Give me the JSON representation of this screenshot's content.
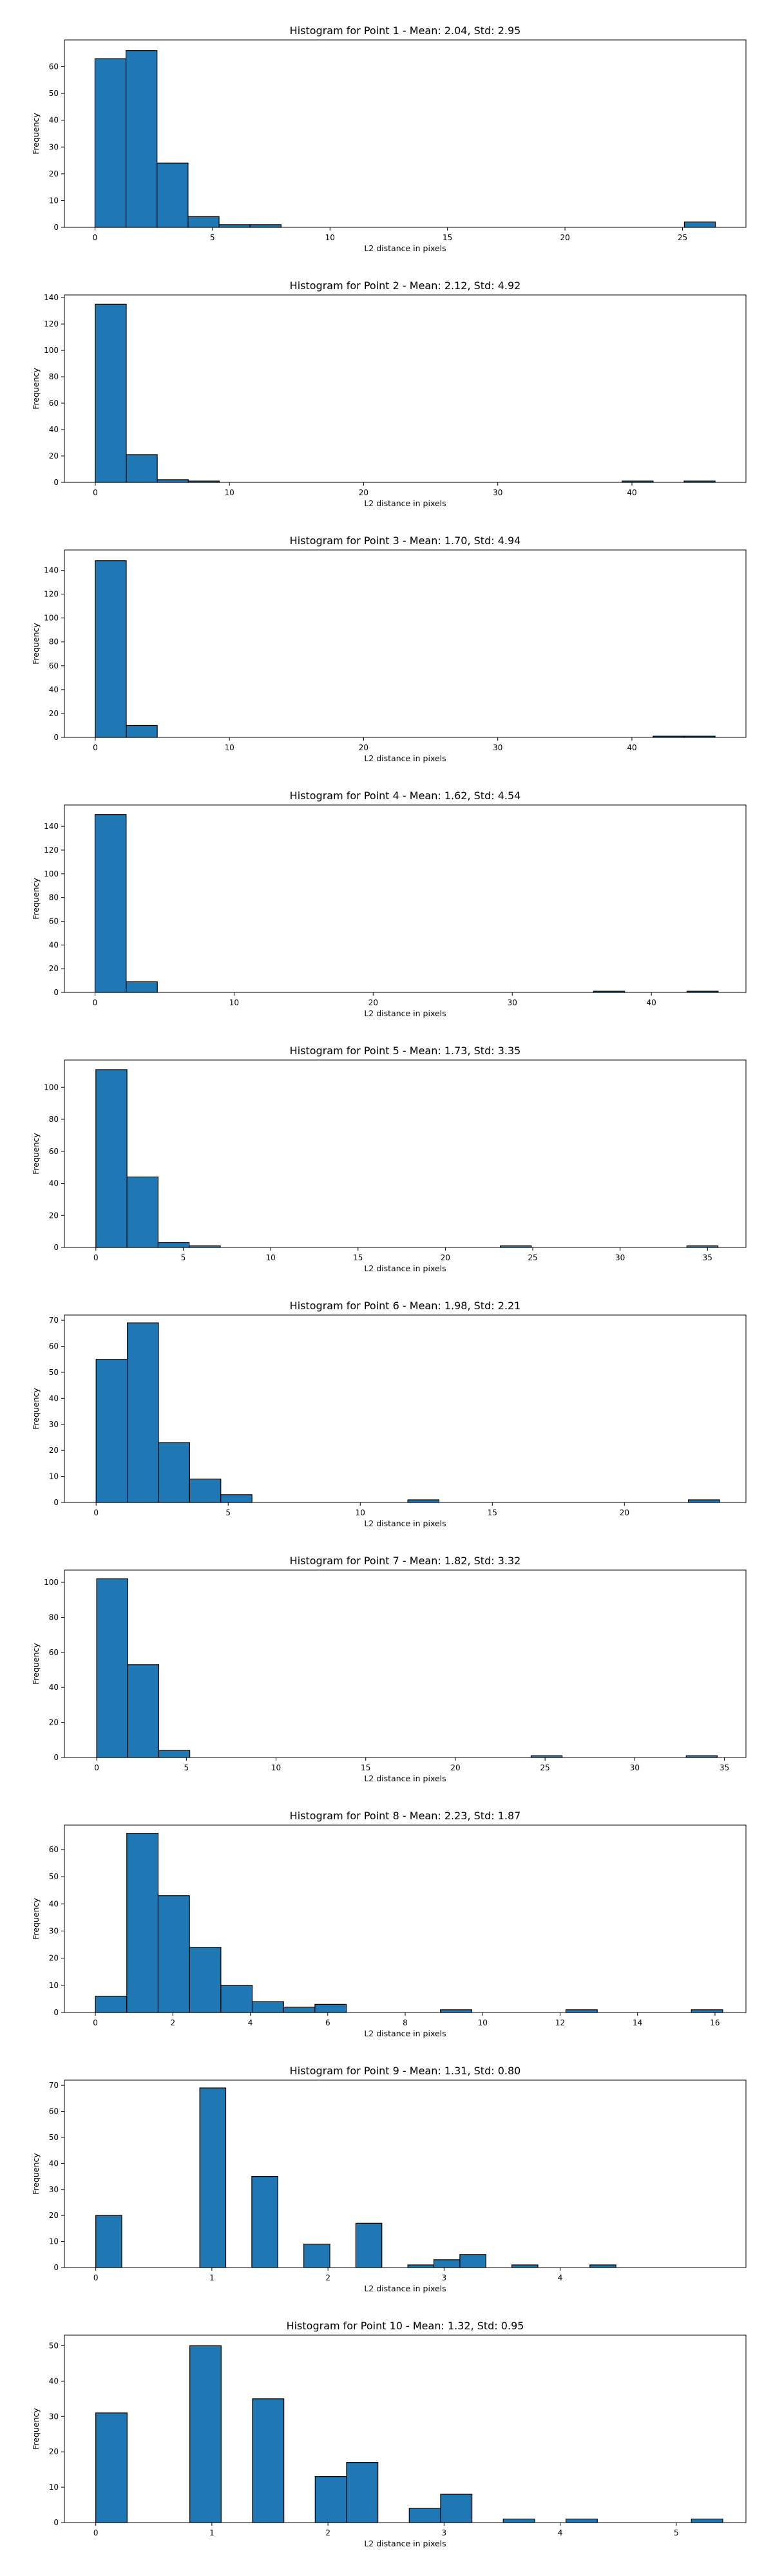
{
  "figure": {
    "bar_color": "#1f77b4",
    "edge_color": "#000000"
  },
  "chart_data": [
    {
      "type": "bar",
      "title": "Histogram for Point 1 - Mean: 2.04, Std: 2.95",
      "xlabel": "L2 distance in pixels",
      "ylabel": "Frequency",
      "xlim": [
        -1.3,
        27.7
      ],
      "ylim": [
        0,
        70
      ],
      "xticks": [
        0,
        5,
        10,
        15,
        20,
        25
      ],
      "yticks": [
        0,
        10,
        20,
        30,
        40,
        50,
        60
      ],
      "bin_start": 0,
      "bin_width": 1.32,
      "values": [
        63,
        66,
        24,
        4,
        1,
        1,
        0,
        0,
        0,
        0,
        0,
        0,
        0,
        0,
        0,
        0,
        0,
        0,
        0,
        2
      ]
    },
    {
      "type": "bar",
      "title": "Histogram for Point 2 - Mean: 2.12, Std: 4.92",
      "xlabel": "L2 distance in pixels",
      "ylabel": "Frequency",
      "xlim": [
        -2.3,
        48.5
      ],
      "ylim": [
        0,
        142
      ],
      "xticks": [
        0,
        10,
        20,
        30,
        40
      ],
      "yticks": [
        0,
        20,
        40,
        60,
        80,
        100,
        120,
        140
      ],
      "bin_start": 0,
      "bin_width": 2.31,
      "values": [
        135,
        21,
        2,
        1,
        0,
        0,
        0,
        0,
        0,
        0,
        0,
        0,
        0,
        0,
        0,
        0,
        0,
        1,
        0,
        1
      ]
    },
    {
      "type": "bar",
      "title": "Histogram for Point 3 - Mean: 1.70, Std: 4.94",
      "xlabel": "L2 distance in pixels",
      "ylabel": "Frequency",
      "xlim": [
        -2.3,
        48.5
      ],
      "ylim": [
        0,
        157
      ],
      "xticks": [
        0,
        10,
        20,
        30,
        40
      ],
      "yticks": [
        0,
        20,
        40,
        60,
        80,
        100,
        120,
        140
      ],
      "bin_start": 0,
      "bin_width": 2.31,
      "values": [
        148,
        10,
        0,
        0,
        0,
        0,
        0,
        0,
        0,
        0,
        0,
        0,
        0,
        0,
        0,
        0,
        0,
        0,
        1,
        1
      ]
    },
    {
      "type": "bar",
      "title": "Histogram for Point 4 - Mean: 1.62, Std: 4.54",
      "xlabel": "L2 distance in pixels",
      "ylabel": "Frequency",
      "xlim": [
        -2.2,
        46.8
      ],
      "ylim": [
        0,
        158
      ],
      "xticks": [
        0,
        10,
        20,
        30,
        40
      ],
      "yticks": [
        0,
        20,
        40,
        60,
        80,
        100,
        120,
        140
      ],
      "bin_start": 0,
      "bin_width": 2.24,
      "values": [
        150,
        9,
        0,
        0,
        0,
        0,
        0,
        0,
        0,
        0,
        0,
        0,
        0,
        0,
        0,
        0,
        1,
        0,
        0,
        1
      ]
    },
    {
      "type": "bar",
      "title": "Histogram for Point 5 - Mean: 1.73, Std: 3.35",
      "xlabel": "L2 distance in pixels",
      "ylabel": "Frequency",
      "xlim": [
        -1.8,
        37.2
      ],
      "ylim": [
        0,
        117
      ],
      "xticks": [
        0,
        5,
        10,
        15,
        20,
        25,
        30,
        35
      ],
      "yticks": [
        0,
        20,
        40,
        60,
        80,
        100
      ],
      "bin_start": 0,
      "bin_width": 1.78,
      "values": [
        111,
        44,
        3,
        1,
        0,
        0,
        0,
        0,
        0,
        0,
        0,
        0,
        0,
        1,
        0,
        0,
        0,
        0,
        0,
        1
      ]
    },
    {
      "type": "bar",
      "title": "Histogram for Point 6 - Mean: 1.98, Std: 2.21",
      "xlabel": "L2 distance in pixels",
      "ylabel": "Frequency",
      "xlim": [
        -1.2,
        24.6
      ],
      "ylim": [
        0,
        72
      ],
      "xticks": [
        0,
        5,
        10,
        15,
        20
      ],
      "yticks": [
        0,
        10,
        20,
        30,
        40,
        50,
        60,
        70
      ],
      "bin_start": 0,
      "bin_width": 1.18,
      "values": [
        55,
        69,
        23,
        9,
        3,
        0,
        0,
        0,
        0,
        0,
        1,
        0,
        0,
        0,
        0,
        0,
        0,
        0,
        0,
        1
      ]
    },
    {
      "type": "bar",
      "title": "Histogram for Point 7 - Mean: 1.82, Std: 3.32",
      "xlabel": "L2 distance in pixels",
      "ylabel": "Frequency",
      "xlim": [
        -1.8,
        36.2
      ],
      "ylim": [
        0,
        107
      ],
      "xticks": [
        0,
        5,
        10,
        15,
        20,
        25,
        30,
        35
      ],
      "yticks": [
        0,
        20,
        40,
        60,
        80,
        100
      ],
      "bin_start": 0,
      "bin_width": 1.73,
      "values": [
        102,
        53,
        4,
        0,
        0,
        0,
        0,
        0,
        0,
        0,
        0,
        0,
        0,
        0,
        1,
        0,
        0,
        0,
        0,
        1
      ]
    },
    {
      "type": "bar",
      "title": "Histogram for Point 8 - Mean: 2.23, Std: 1.87",
      "xlabel": "L2 distance in pixels",
      "ylabel": "Frequency",
      "xlim": [
        -0.8,
        16.8
      ],
      "ylim": [
        0,
        69
      ],
      "xticks": [
        0,
        2,
        4,
        6,
        8,
        10,
        12,
        14,
        16
      ],
      "yticks": [
        0,
        10,
        20,
        30,
        40,
        50,
        60
      ],
      "bin_start": 0,
      "bin_width": 0.81,
      "values": [
        6,
        66,
        43,
        24,
        10,
        4,
        2,
        3,
        0,
        0,
        0,
        1,
        0,
        0,
        0,
        1,
        0,
        0,
        0,
        1
      ]
    },
    {
      "type": "bar",
      "title": "Histogram for Point 9 - Mean: 1.31, Std: 0.80",
      "xlabel": "L2 distance in pixels",
      "ylabel": "Frequency",
      "xlim": [
        -0.27,
        5.6
      ],
      "ylim": [
        0,
        72
      ],
      "xticks": [
        0,
        1,
        2,
        3,
        4
      ],
      "yticks": [
        0,
        10,
        20,
        30,
        40,
        50,
        60,
        70
      ],
      "bin_start": 0,
      "bin_width": 0.224,
      "values": [
        20,
        0,
        0,
        0,
        69,
        0,
        35,
        0,
        9,
        0,
        17,
        0,
        1,
        3,
        5,
        0,
        1,
        0,
        0,
        1
      ]
    },
    {
      "type": "bar",
      "title": "Histogram for Point 10 - Mean: 1.32, Std: 0.95",
      "xlabel": "L2 distance in pixels",
      "ylabel": "Frequency",
      "xlim": [
        -0.27,
        5.6
      ],
      "ylim": [
        0,
        53
      ],
      "xticks": [
        0,
        1,
        2,
        3,
        4,
        5
      ],
      "yticks": [
        0,
        10,
        20,
        30,
        40,
        50
      ],
      "bin_start": 0,
      "bin_width": 0.27,
      "values": [
        31,
        0,
        0,
        50,
        0,
        35,
        0,
        13,
        17,
        0,
        4,
        8,
        0,
        1,
        0,
        1,
        0,
        0,
        0,
        1
      ]
    }
  ]
}
